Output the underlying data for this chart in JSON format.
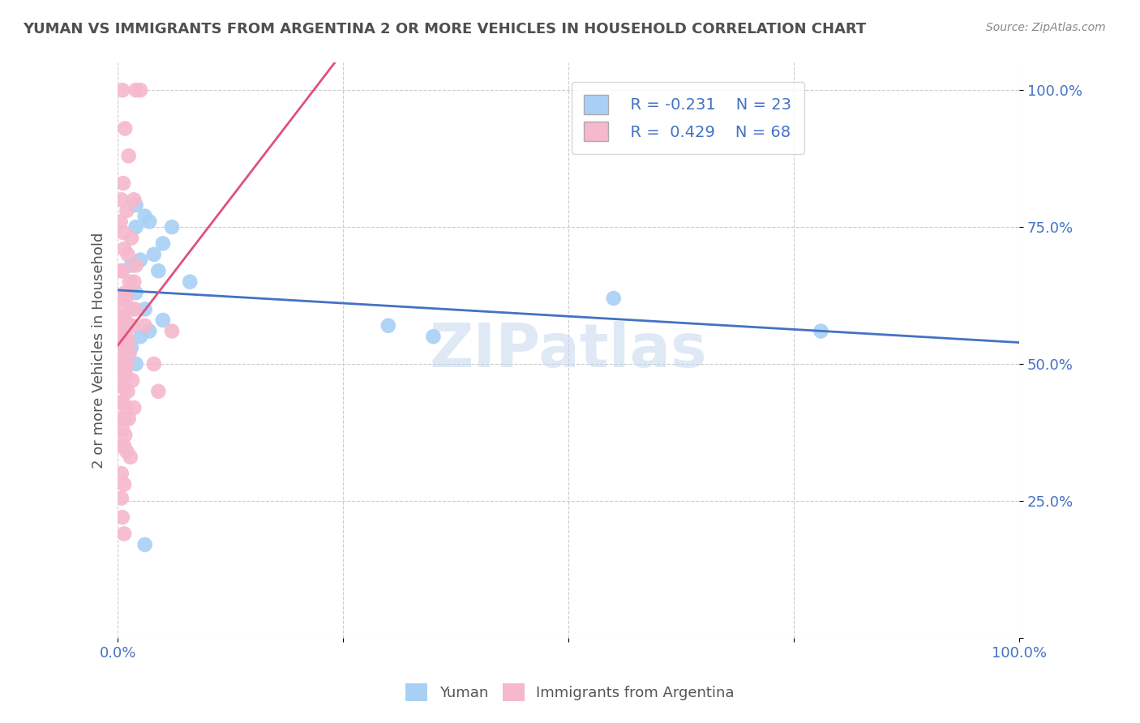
{
  "title": "YUMAN VS IMMIGRANTS FROM ARGENTINA 2 OR MORE VEHICLES IN HOUSEHOLD CORRELATION CHART",
  "source": "Source: ZipAtlas.com",
  "ylabel": "2 or more Vehicles in Household",
  "legend_r1": "R = -0.231",
  "legend_n1": "N = 23",
  "legend_r2": "R =  0.429",
  "legend_n2": "N = 68",
  "color_blue": "#a8d0f5",
  "color_pink": "#f5b8cc",
  "color_blue_line": "#4472c4",
  "color_pink_line": "#e05080",
  "title_color": "#505050",
  "axis_color": "#4472c4",
  "watermark_color": "#c5d8f0",
  "blue_points": [
    [
      2.0,
      79.0
    ],
    [
      3.0,
      77.0
    ],
    [
      3.5,
      76.0
    ],
    [
      6.0,
      75.0
    ],
    [
      2.0,
      75.0
    ],
    [
      5.0,
      72.0
    ],
    [
      4.0,
      70.0
    ],
    [
      2.5,
      69.0
    ],
    [
      1.5,
      68.0
    ],
    [
      4.5,
      67.0
    ],
    [
      8.0,
      65.0
    ],
    [
      2.0,
      63.0
    ],
    [
      3.0,
      60.0
    ],
    [
      5.0,
      58.0
    ],
    [
      3.5,
      56.0
    ],
    [
      2.5,
      55.0
    ],
    [
      1.5,
      53.0
    ],
    [
      2.0,
      50.0
    ],
    [
      30.0,
      57.0
    ],
    [
      35.0,
      55.0
    ],
    [
      55.0,
      62.0
    ],
    [
      78.0,
      56.0
    ],
    [
      3.0,
      17.0
    ]
  ],
  "pink_points": [
    [
      0.5,
      100.0
    ],
    [
      2.0,
      100.0
    ],
    [
      2.5,
      100.0
    ],
    [
      0.8,
      93.0
    ],
    [
      1.2,
      88.0
    ],
    [
      0.6,
      83.0
    ],
    [
      0.4,
      80.0
    ],
    [
      1.8,
      80.0
    ],
    [
      1.0,
      78.0
    ],
    [
      0.3,
      76.0
    ],
    [
      0.6,
      74.0
    ],
    [
      1.5,
      73.0
    ],
    [
      0.7,
      71.0
    ],
    [
      1.1,
      70.0
    ],
    [
      2.0,
      68.0
    ],
    [
      0.4,
      67.0
    ],
    [
      0.5,
      67.0
    ],
    [
      1.3,
      65.0
    ],
    [
      1.8,
      65.0
    ],
    [
      0.8,
      63.0
    ],
    [
      0.9,
      62.0
    ],
    [
      0.4,
      62.0
    ],
    [
      0.6,
      60.5
    ],
    [
      1.4,
      60.0
    ],
    [
      1.9,
      60.0
    ],
    [
      0.3,
      58.5
    ],
    [
      0.7,
      58.0
    ],
    [
      1.0,
      57.5
    ],
    [
      1.6,
      57.0
    ],
    [
      0.5,
      56.0
    ],
    [
      0.9,
      55.0
    ],
    [
      0.3,
      55.0
    ],
    [
      0.8,
      54.0
    ],
    [
      1.2,
      54.0
    ],
    [
      0.4,
      53.0
    ],
    [
      0.6,
      52.0
    ],
    [
      1.3,
      52.0
    ],
    [
      0.3,
      50.0
    ],
    [
      0.7,
      50.0
    ],
    [
      1.0,
      50.0
    ],
    [
      0.4,
      48.0
    ],
    [
      0.9,
      48.0
    ],
    [
      1.6,
      47.0
    ],
    [
      0.5,
      46.0
    ],
    [
      0.8,
      45.5
    ],
    [
      1.1,
      45.0
    ],
    [
      0.3,
      43.0
    ],
    [
      0.6,
      43.0
    ],
    [
      0.9,
      42.0
    ],
    [
      0.4,
      40.0
    ],
    [
      0.7,
      40.0
    ],
    [
      1.2,
      40.0
    ],
    [
      0.5,
      38.0
    ],
    [
      0.8,
      37.0
    ],
    [
      0.3,
      35.0
    ],
    [
      0.7,
      35.0
    ],
    [
      1.0,
      34.0
    ],
    [
      1.4,
      33.0
    ],
    [
      0.4,
      30.0
    ],
    [
      0.7,
      28.0
    ],
    [
      6.0,
      56.0
    ],
    [
      3.0,
      57.0
    ],
    [
      4.0,
      50.0
    ],
    [
      4.5,
      45.0
    ],
    [
      1.8,
      42.0
    ],
    [
      0.4,
      25.5
    ],
    [
      0.5,
      22.0
    ],
    [
      0.7,
      19.0
    ]
  ]
}
